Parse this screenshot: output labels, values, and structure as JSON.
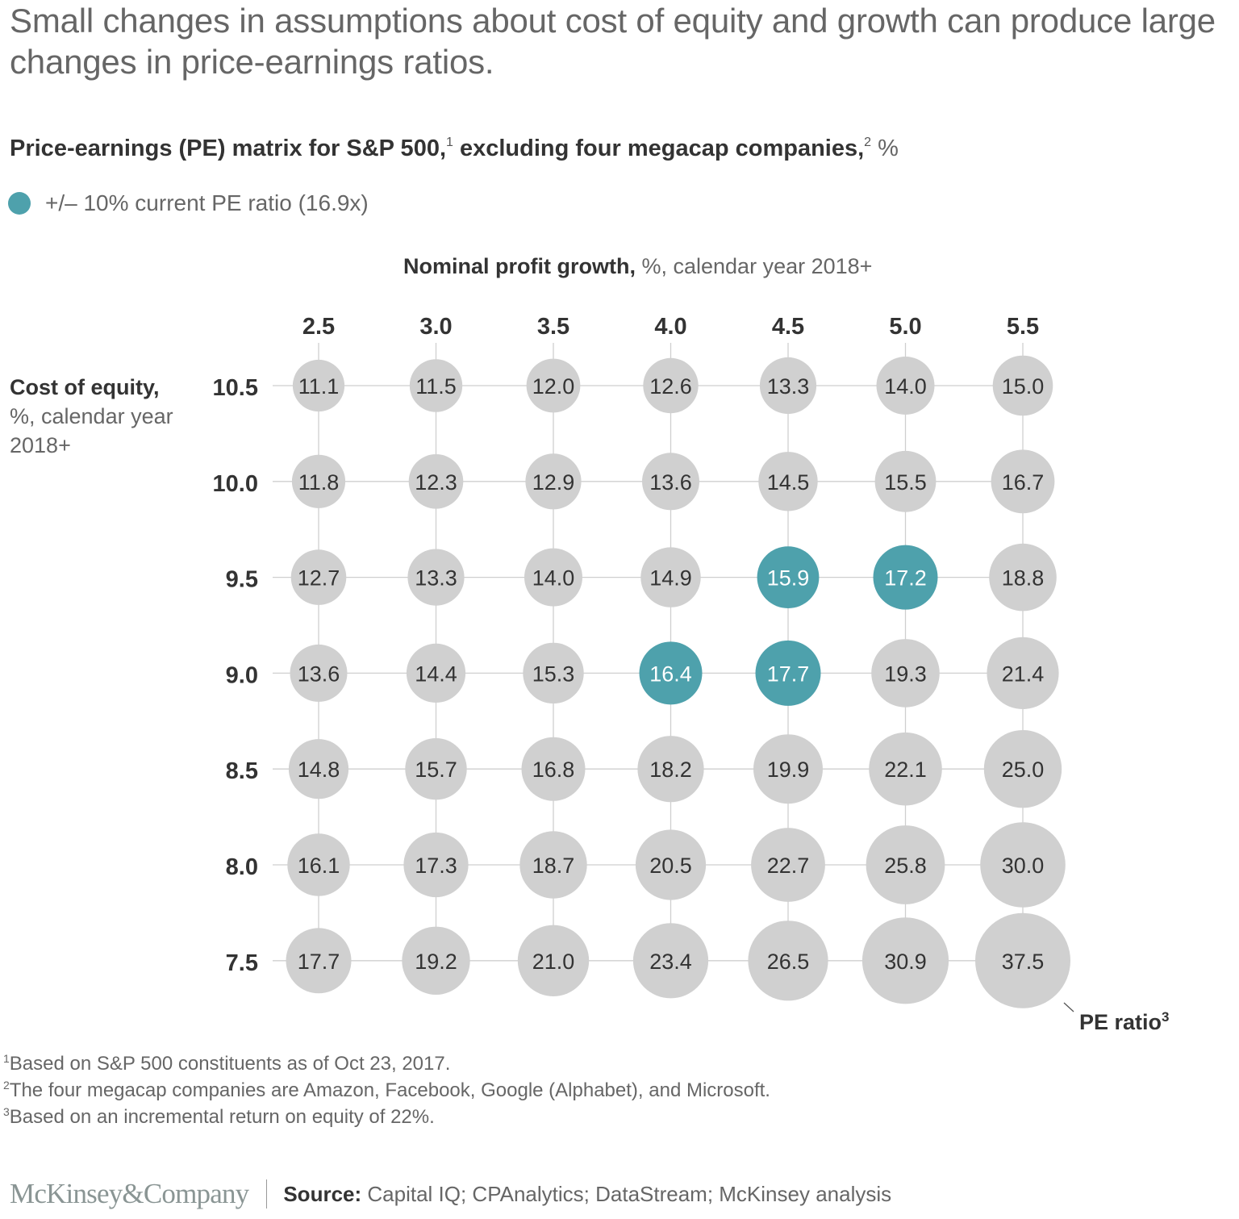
{
  "title": "Small changes in assumptions about cost of equity and growth can produce large changes in price-earnings ratios.",
  "subtitle": {
    "main": "Price-earnings (PE) matrix for S&P 500,",
    "sup1": "1",
    "middle": " excluding four megacap companies,",
    "sup2": "2",
    "unit": " %"
  },
  "legend": {
    "label": "+/– 10% current PE ratio (16.9x)",
    "color": "#4ea1ac"
  },
  "x_axis_title": {
    "bold": "Nominal profit growth,",
    "rest": " %, calendar year 2018+"
  },
  "y_axis_title": {
    "bold": "Cost of equity,",
    "rest": "%, calendar year 2018+"
  },
  "size_label": {
    "text": "PE ratio",
    "sup": "3"
  },
  "chart_data": {
    "type": "scatter",
    "subtype": "bubble-matrix",
    "title": "Price-earnings (PE) matrix for S&P 500, excluding four megacap companies, %",
    "xlabel": "Nominal profit growth, %, calendar year 2018+",
    "ylabel": "Cost of equity, %, calendar year 2018+",
    "size_label": "PE ratio",
    "x": [
      "2.5",
      "3.0",
      "3.5",
      "4.0",
      "4.5",
      "5.0",
      "5.5"
    ],
    "y": [
      "10.5",
      "10.0",
      "9.5",
      "9.0",
      "8.5",
      "8.0",
      "7.5"
    ],
    "values": [
      [
        11.1,
        11.5,
        12.0,
        12.6,
        13.3,
        14.0,
        15.0
      ],
      [
        11.8,
        12.3,
        12.9,
        13.6,
        14.5,
        15.5,
        16.7
      ],
      [
        12.7,
        13.3,
        14.0,
        14.9,
        15.9,
        17.2,
        18.8
      ],
      [
        13.6,
        14.4,
        15.3,
        16.4,
        17.7,
        19.3,
        21.4
      ],
      [
        14.8,
        15.7,
        16.8,
        18.2,
        19.9,
        22.1,
        25.0
      ],
      [
        16.1,
        17.3,
        18.7,
        20.5,
        22.7,
        25.8,
        30.0
      ],
      [
        17.7,
        19.2,
        21.0,
        23.4,
        26.5,
        30.9,
        37.5
      ]
    ],
    "highlight": {
      "label": "+/– 10% current PE ratio (16.9x)",
      "current_pe": 16.9,
      "cells": [
        [
          2,
          4
        ],
        [
          2,
          5
        ],
        [
          3,
          3
        ],
        [
          3,
          4
        ]
      ],
      "color": "#4ea1ac"
    },
    "default_color": "#d0d0d0",
    "grid": true,
    "legend": "top-left"
  },
  "footnotes": [
    {
      "sup": "1",
      "text": "Based on S&P 500 constituents as of Oct 23, 2017."
    },
    {
      "sup": "2",
      "text": "The four megacap companies are Amazon, Facebook, Google (Alphabet), and Microsoft."
    },
    {
      "sup": "3",
      "text": "Based on an incremental return on equity of 22%."
    }
  ],
  "footer": {
    "logo": "McKinsey&Company",
    "source_label": "Source:",
    "source_text": " Capital IQ; CPAnalytics; DataStream; McKinsey analysis"
  }
}
